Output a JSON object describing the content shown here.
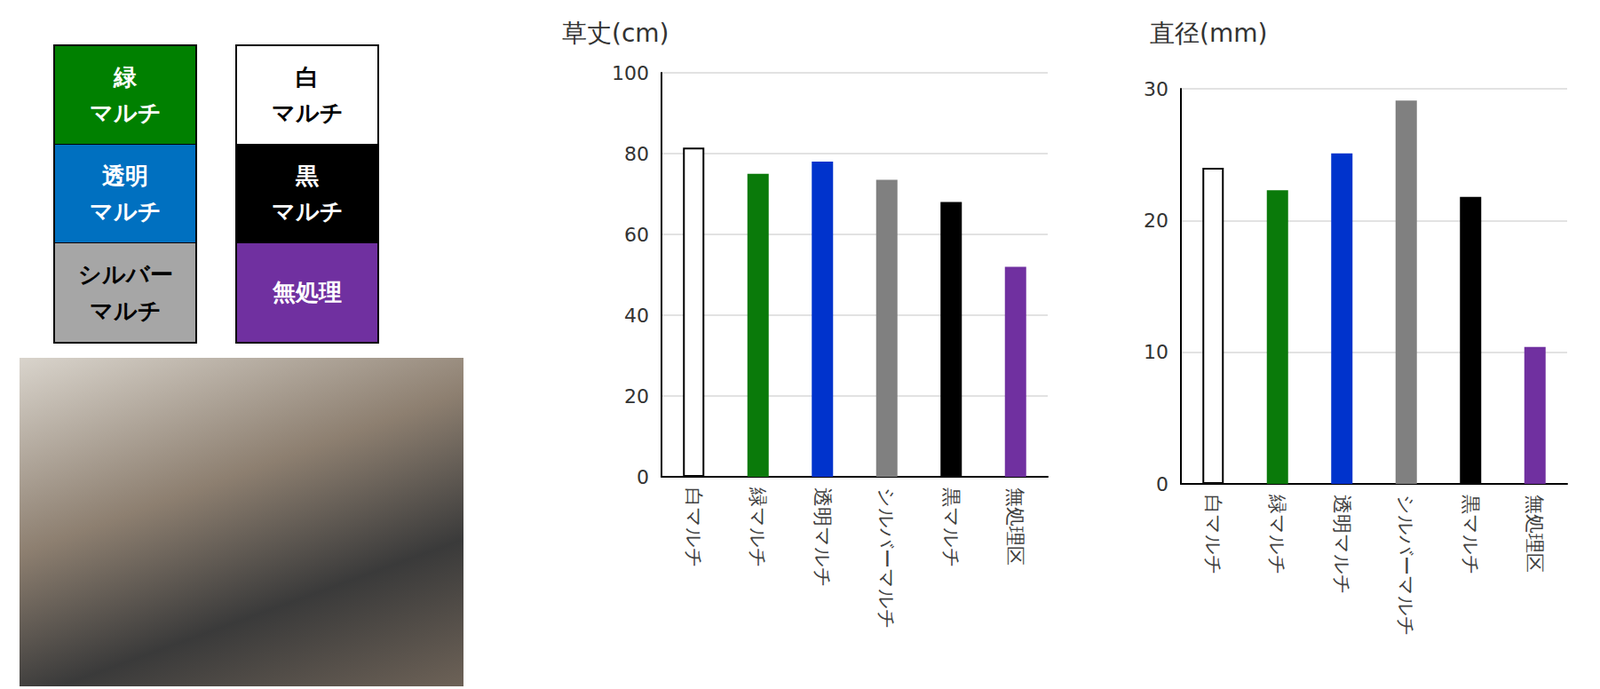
{
  "chart_data": [
    {
      "type": "bar",
      "title": "草丈(cm)",
      "categories": [
        "白マルチ",
        "緑マルチ",
        "透明マルチ",
        "シルバーマルチ",
        "黒マルチ",
        "無処理区"
      ],
      "values": [
        81.5,
        75,
        78,
        73.5,
        68,
        52
      ],
      "colors": [
        "#ffffff",
        "#0a7a0a",
        "#0033cc",
        "#808080",
        "#000000",
        "#7030a0"
      ],
      "ylim": [
        0,
        100
      ],
      "yticks": [
        0,
        20,
        40,
        60,
        80,
        100
      ],
      "grid": true
    },
    {
      "type": "bar",
      "title": "直径(mm)",
      "categories": [
        "白マルチ",
        "緑マルチ",
        "透明マルチ",
        "シルバーマルチ",
        "黒マルチ",
        "無処理区"
      ],
      "values": [
        24,
        22.3,
        25.1,
        29.1,
        21.8,
        10.4
      ],
      "colors": [
        "#ffffff",
        "#0a7a0a",
        "#0033cc",
        "#808080",
        "#000000",
        "#7030a0"
      ],
      "ylim": [
        0,
        30
      ],
      "yticks": [
        0,
        10,
        20,
        30
      ],
      "grid": true
    }
  ],
  "legend_boxes": [
    [
      {
        "lines": [
          "緑",
          "マルチ"
        ],
        "color": "#008000"
      },
      {
        "lines": [
          "透明",
          "マルチ"
        ],
        "color": "#0070c0"
      },
      {
        "lines": [
          "シルバー",
          "マルチ"
        ],
        "color": "#a6a6a6"
      }
    ],
    [
      {
        "lines": [
          "白",
          "マルチ"
        ],
        "color": "#ffffff"
      },
      {
        "lines": [
          "黒",
          "マルチ"
        ],
        "color": "#000000"
      },
      {
        "lines": [
          "無処理"
        ],
        "color": "#7030a0"
      }
    ]
  ]
}
